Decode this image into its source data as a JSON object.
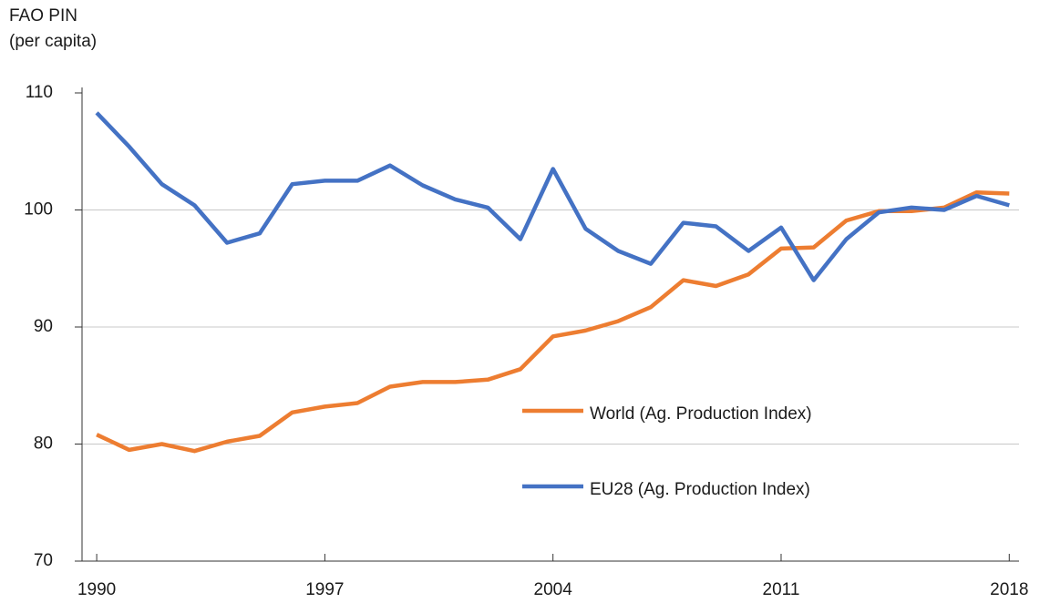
{
  "chart_data": {
    "type": "line",
    "ylabel": [
      "FAO PIN",
      "(per capita)"
    ],
    "x": [
      1990,
      1991,
      1992,
      1993,
      1994,
      1995,
      1996,
      1997,
      1998,
      1999,
      2000,
      2001,
      2002,
      2003,
      2004,
      2005,
      2006,
      2007,
      2008,
      2009,
      2010,
      2011,
      2012,
      2013,
      2014,
      2015,
      2016,
      2017,
      2018
    ],
    "series": [
      {
        "name": "World (Ag. Production Index)",
        "color": "#ed7d31",
        "values": [
          80.8,
          79.5,
          80.0,
          79.4,
          80.2,
          80.7,
          82.7,
          83.2,
          83.5,
          84.9,
          85.3,
          85.3,
          85.5,
          86.4,
          89.2,
          89.7,
          90.5,
          91.7,
          94.0,
          93.5,
          94.5,
          96.7,
          96.8,
          99.1,
          99.9,
          99.9,
          100.2,
          101.5,
          101.4
        ]
      },
      {
        "name": "EU28 (Ag. Production Index)",
        "color": "#4472c4",
        "values": [
          108.3,
          105.4,
          102.2,
          100.4,
          97.2,
          98.0,
          102.2,
          102.5,
          102.5,
          103.8,
          102.1,
          100.9,
          100.2,
          97.5,
          103.5,
          98.4,
          96.5,
          95.4,
          98.9,
          98.6,
          96.5,
          98.5,
          94.0,
          97.5,
          99.8,
          100.2,
          100.0,
          101.2,
          100.4
        ]
      }
    ],
    "xlim": [
      1989.55,
      2018.3
    ],
    "xticks": [
      1990,
      1997,
      2004,
      2011,
      2018
    ],
    "ylim": [
      70,
      110
    ],
    "yticks": [
      70,
      80,
      90,
      100,
      110
    ],
    "grid": true
  }
}
